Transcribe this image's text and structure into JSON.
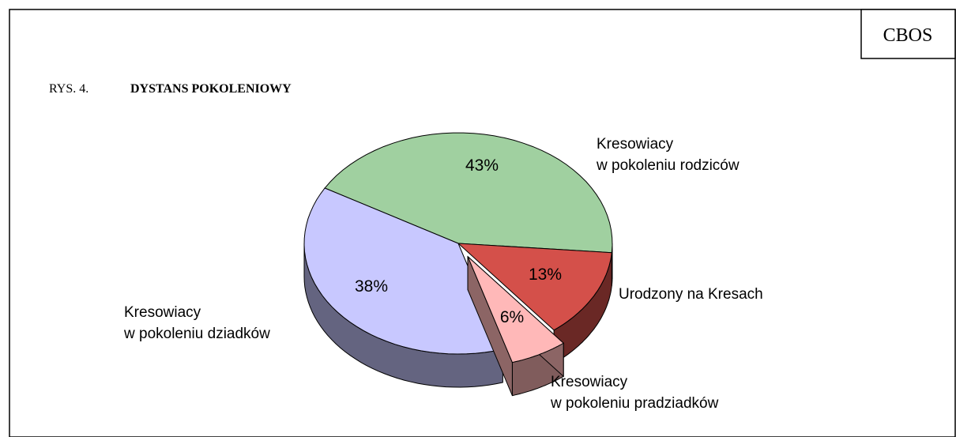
{
  "source": "CBOS",
  "chart_data": {
    "type": "pie3d",
    "figure_label": "RYS. 4.",
    "title": "DYSTANS POKOLENIOWY",
    "categories": [
      [
        "Kresowiacy",
        "w pokoleniu rodziców"
      ],
      [
        "Urodzony na Kresach"
      ],
      [
        "Kresowiacy",
        "w pokoleniu pradziadków"
      ],
      [
        "Kresowiacy",
        "w pokoleniu dziadków"
      ]
    ],
    "values": [
      43,
      13,
      6,
      38
    ],
    "value_labels": [
      "43%",
      "13%",
      "6%",
      "38%"
    ],
    "colors": [
      "#a0d0a0",
      "#d4504a",
      "#ffb8b8",
      "#c8c8ff"
    ],
    "exploded": [
      false,
      false,
      true,
      false
    ]
  }
}
